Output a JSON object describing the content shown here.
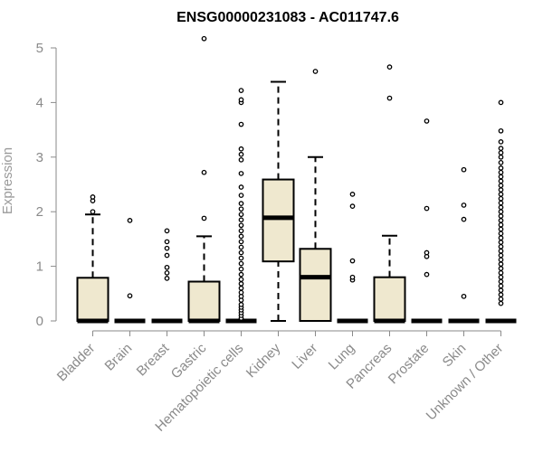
{
  "chart_data": {
    "type": "boxplot",
    "title": "ENSG00000231083 - AC011747.6",
    "xlabel": "",
    "ylabel": "Expression",
    "ylim": [
      0,
      5.2
    ],
    "yticks": [
      0,
      1,
      2,
      3,
      4,
      5
    ],
    "grid": false,
    "box_fill": "#EFE8CF",
    "box_stroke": "#000000",
    "categories": [
      "Bladder",
      "Brain",
      "Breast",
      "Gastric",
      "Hematopoietic cells",
      "Kidney",
      "Liver",
      "Lung",
      "Pancreas",
      "Prostate",
      "Skin",
      "Unknown / Other"
    ],
    "boxes": [
      {
        "category": "Bladder",
        "min": 0,
        "q1": 0,
        "median": 0,
        "q3": 0.79,
        "max": 1.95,
        "outliers": [
          2.0,
          2.2,
          2.27
        ]
      },
      {
        "category": "Brain",
        "min": 0,
        "q1": 0,
        "median": 0,
        "q3": 0,
        "max": 0,
        "outliers": [
          0.46,
          1.84
        ]
      },
      {
        "category": "Breast",
        "min": 0,
        "q1": 0,
        "median": 0,
        "q3": 0,
        "max": 0,
        "outliers": [
          0.78,
          0.88,
          0.98,
          1.2,
          1.33,
          1.45,
          1.65
        ]
      },
      {
        "category": "Gastric",
        "min": 0,
        "q1": 0,
        "median": 0,
        "q3": 0.72,
        "max": 1.55,
        "outliers": [
          1.88,
          2.72,
          5.17
        ]
      },
      {
        "category": "Hematopoietic cells",
        "min": 0,
        "q1": 0,
        "median": 0,
        "q3": 0,
        "max": 0,
        "outliers": [
          0.05,
          0.1,
          0.15,
          0.2,
          0.25,
          0.3,
          0.38,
          0.45,
          0.52,
          0.6,
          0.68,
          0.76,
          0.85,
          0.95,
          1.05,
          1.15,
          1.25,
          1.35,
          1.45,
          1.55,
          1.65,
          1.75,
          1.85,
          1.95,
          2.05,
          2.15,
          2.3,
          2.45,
          2.7,
          2.95,
          3.05,
          3.15,
          3.6,
          4.0,
          4.05,
          4.22
        ]
      },
      {
        "category": "Kidney",
        "min": 0,
        "q1": 1.09,
        "median": 1.89,
        "q3": 2.59,
        "max": 4.38,
        "outliers": []
      },
      {
        "category": "Liver",
        "min": 0,
        "q1": 0,
        "median": 0.8,
        "q3": 1.32,
        "max": 3.0,
        "outliers": [
          4.57
        ]
      },
      {
        "category": "Lung",
        "min": 0,
        "q1": 0,
        "median": 0,
        "q3": 0,
        "max": 0,
        "outliers": [
          0.75,
          0.8,
          1.1,
          2.1,
          2.32
        ]
      },
      {
        "category": "Pancreas",
        "min": 0,
        "q1": 0,
        "median": 0,
        "q3": 0.8,
        "max": 1.56,
        "outliers": [
          4.08,
          4.65
        ]
      },
      {
        "category": "Prostate",
        "min": 0,
        "q1": 0,
        "median": 0,
        "q3": 0,
        "max": 0,
        "outliers": [
          0.85,
          1.18,
          1.25,
          2.06,
          3.66
        ]
      },
      {
        "category": "Skin",
        "min": 0,
        "q1": 0,
        "median": 0,
        "q3": 0,
        "max": 0,
        "outliers": [
          0.45,
          1.86,
          2.12,
          2.77
        ]
      },
      {
        "category": "Unknown / Other",
        "min": 0,
        "q1": 0,
        "median": 0,
        "q3": 0,
        "max": 0,
        "outliers": [
          0.32,
          0.4,
          0.48,
          0.56,
          0.64,
          0.72,
          0.8,
          0.88,
          0.96,
          1.04,
          1.12,
          1.2,
          1.28,
          1.36,
          1.44,
          1.52,
          1.6,
          1.68,
          1.76,
          1.84,
          1.92,
          2.0,
          2.08,
          2.16,
          2.24,
          2.32,
          2.4,
          2.48,
          2.56,
          2.64,
          2.72,
          2.8,
          2.9,
          3.0,
          3.08,
          3.16,
          3.28,
          3.48,
          4.0
        ]
      }
    ]
  }
}
